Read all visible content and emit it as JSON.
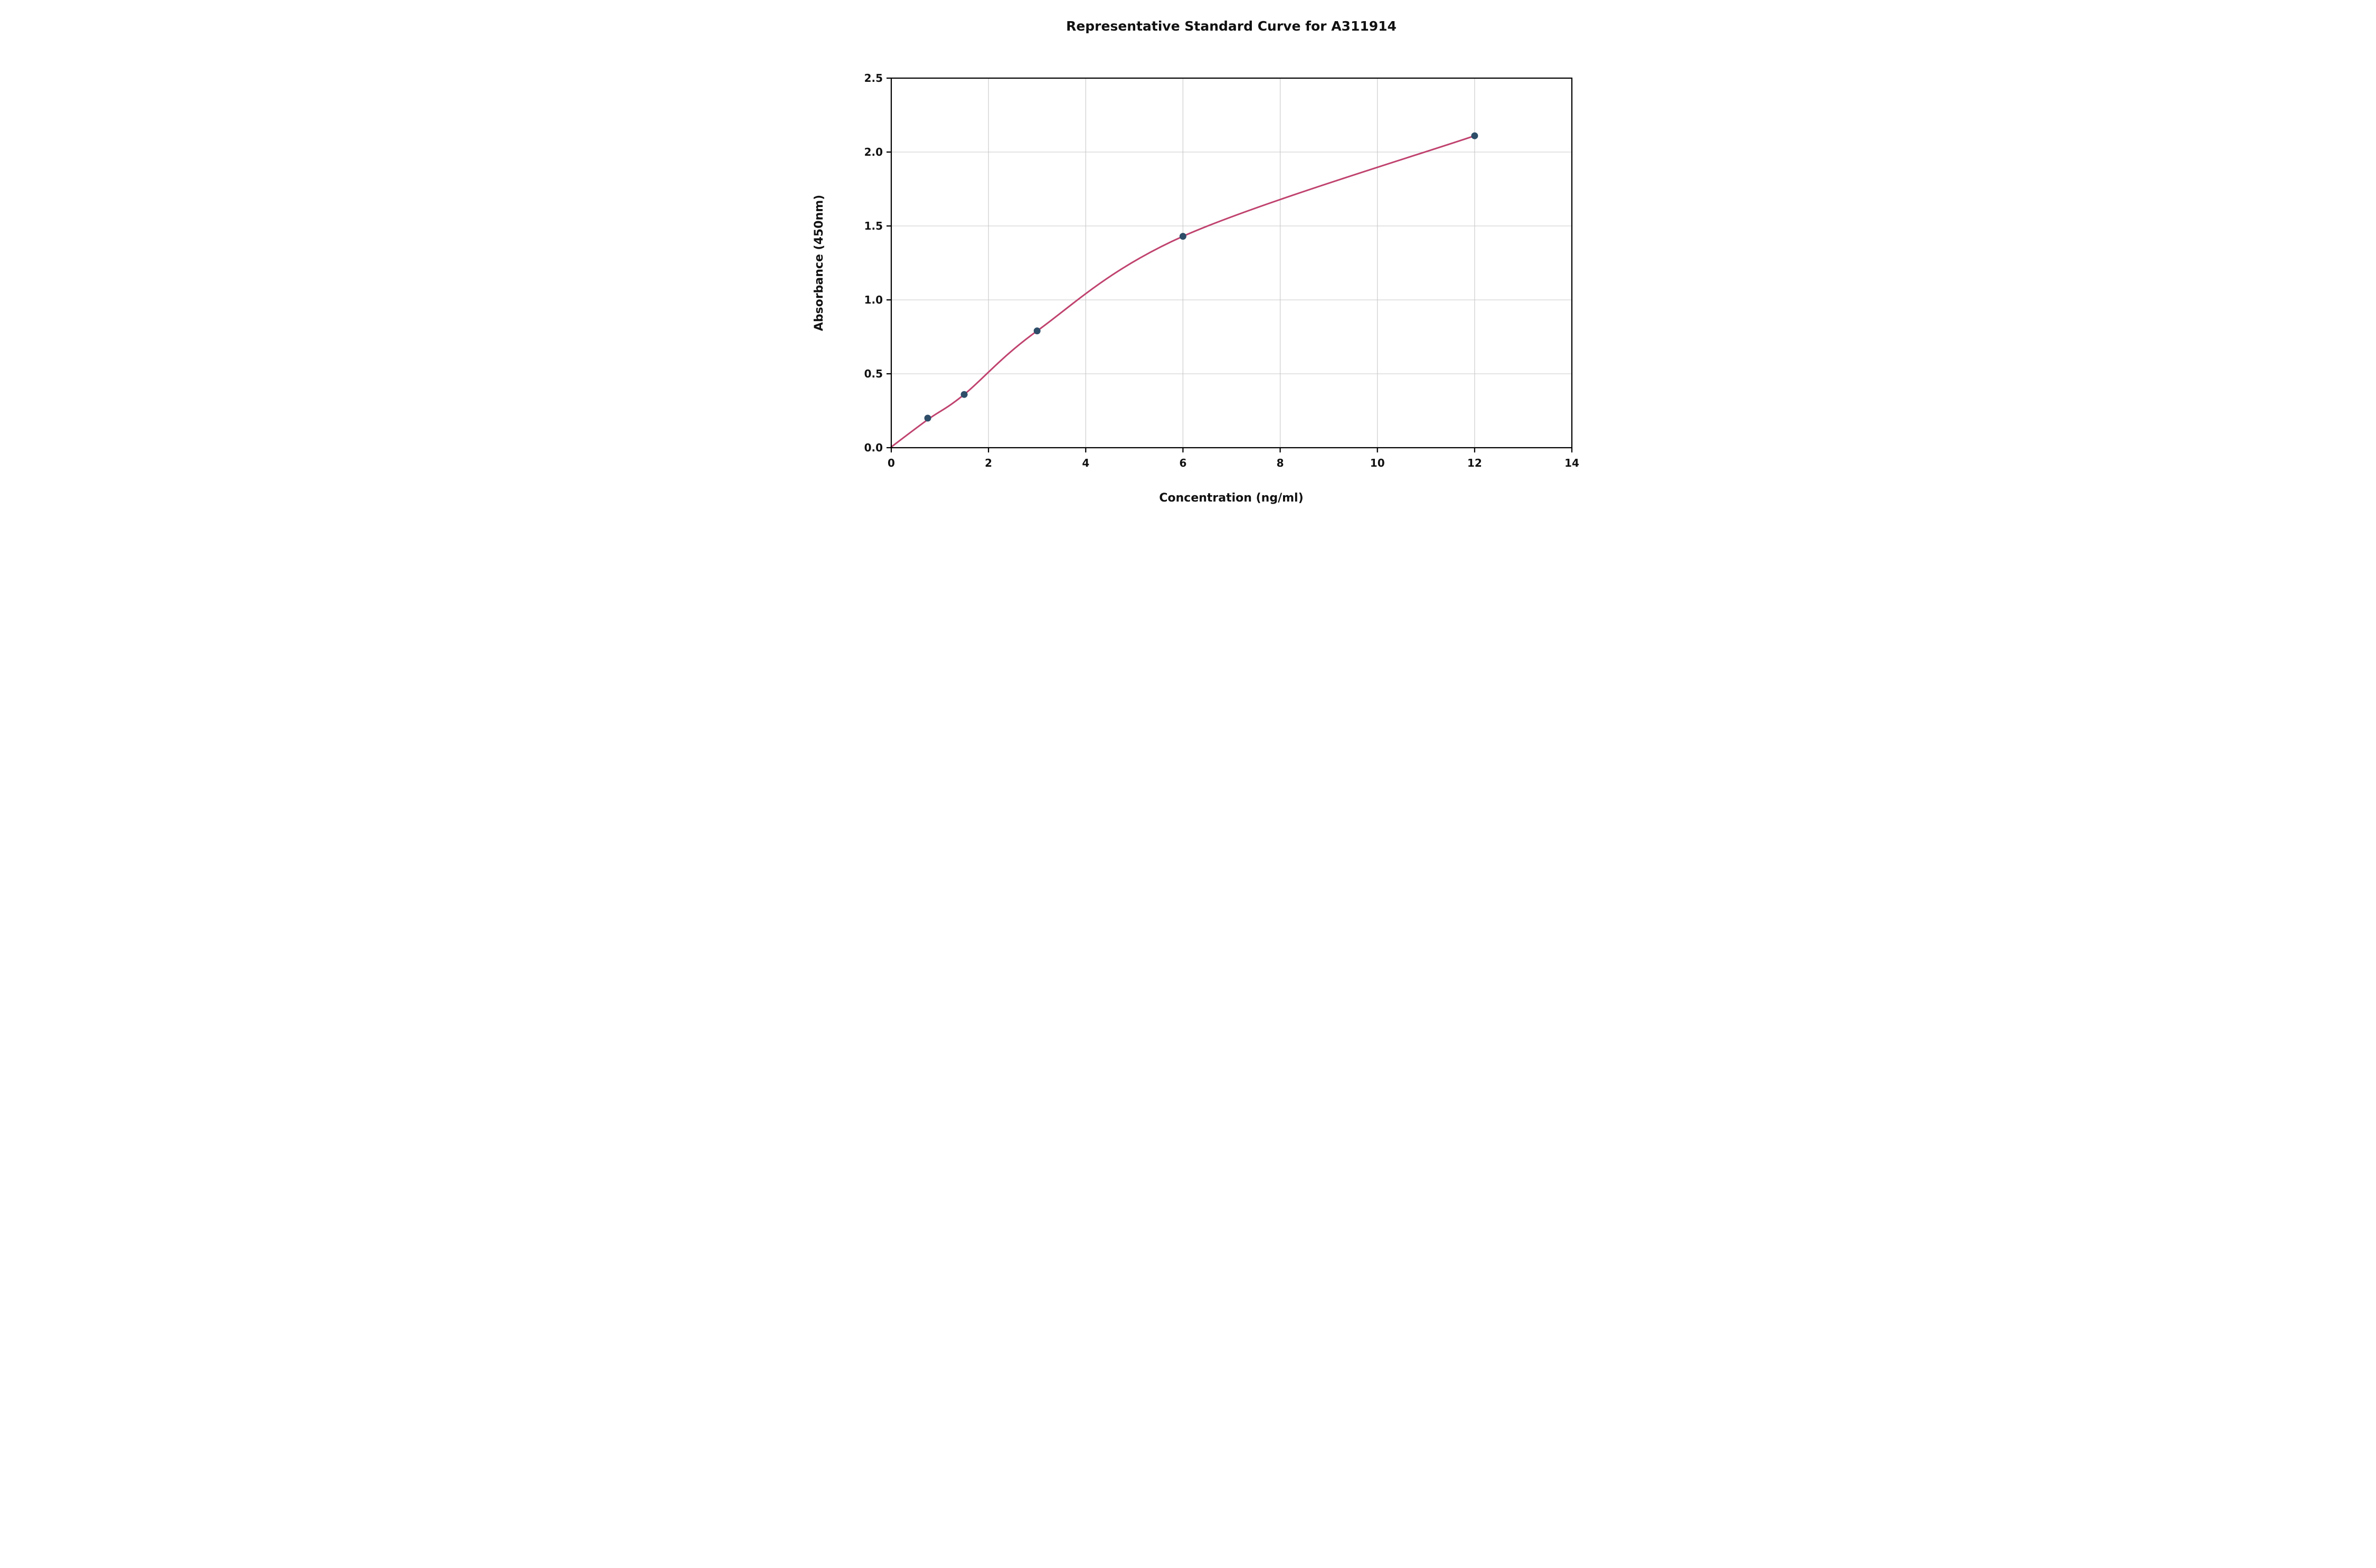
{
  "chart_data": {
    "type": "scatter",
    "title": "Representative Standard Curve for A311914",
    "xlabel": "Concentration (ng/ml)",
    "ylabel": "Absorbance (450nm)",
    "xlim": [
      0,
      14
    ],
    "ylim": [
      0,
      2.5
    ],
    "grid": true,
    "legend": "none",
    "x_ticks": [
      {
        "value": 0,
        "label": "0"
      },
      {
        "value": 2,
        "label": "2"
      },
      {
        "value": 4,
        "label": "4"
      },
      {
        "value": 6,
        "label": "6"
      },
      {
        "value": 8,
        "label": "8"
      },
      {
        "value": 10,
        "label": "10"
      },
      {
        "value": 12,
        "label": "12"
      },
      {
        "value": 14,
        "label": "14"
      }
    ],
    "y_ticks": [
      {
        "value": 0.0,
        "label": "0.0"
      },
      {
        "value": 0.5,
        "label": "0.5"
      },
      {
        "value": 1.0,
        "label": "1.0"
      },
      {
        "value": 1.5,
        "label": "1.5"
      },
      {
        "value": 2.0,
        "label": "2.0"
      },
      {
        "value": 2.5,
        "label": "2.5"
      }
    ],
    "points": [
      {
        "x": 0.75,
        "y": 0.2
      },
      {
        "x": 1.5,
        "y": 0.36
      },
      {
        "x": 3,
        "y": 0.79
      },
      {
        "x": 6,
        "y": 1.43
      },
      {
        "x": 12,
        "y": 2.11
      }
    ],
    "curve_points": [
      {
        "x": 0,
        "y": 0.005
      },
      {
        "x": 0.75,
        "y": 0.19
      },
      {
        "x": 1.5,
        "y": 0.36
      },
      {
        "x": 3,
        "y": 0.79
      },
      {
        "x": 6,
        "y": 1.43
      },
      {
        "x": 12,
        "y": 2.11
      }
    ],
    "colors": {
      "curve": "#c0436f",
      "point": "#2e4d68",
      "grid": "#c8c8c8",
      "spine": "#000000",
      "background": "#ffffff"
    }
  }
}
